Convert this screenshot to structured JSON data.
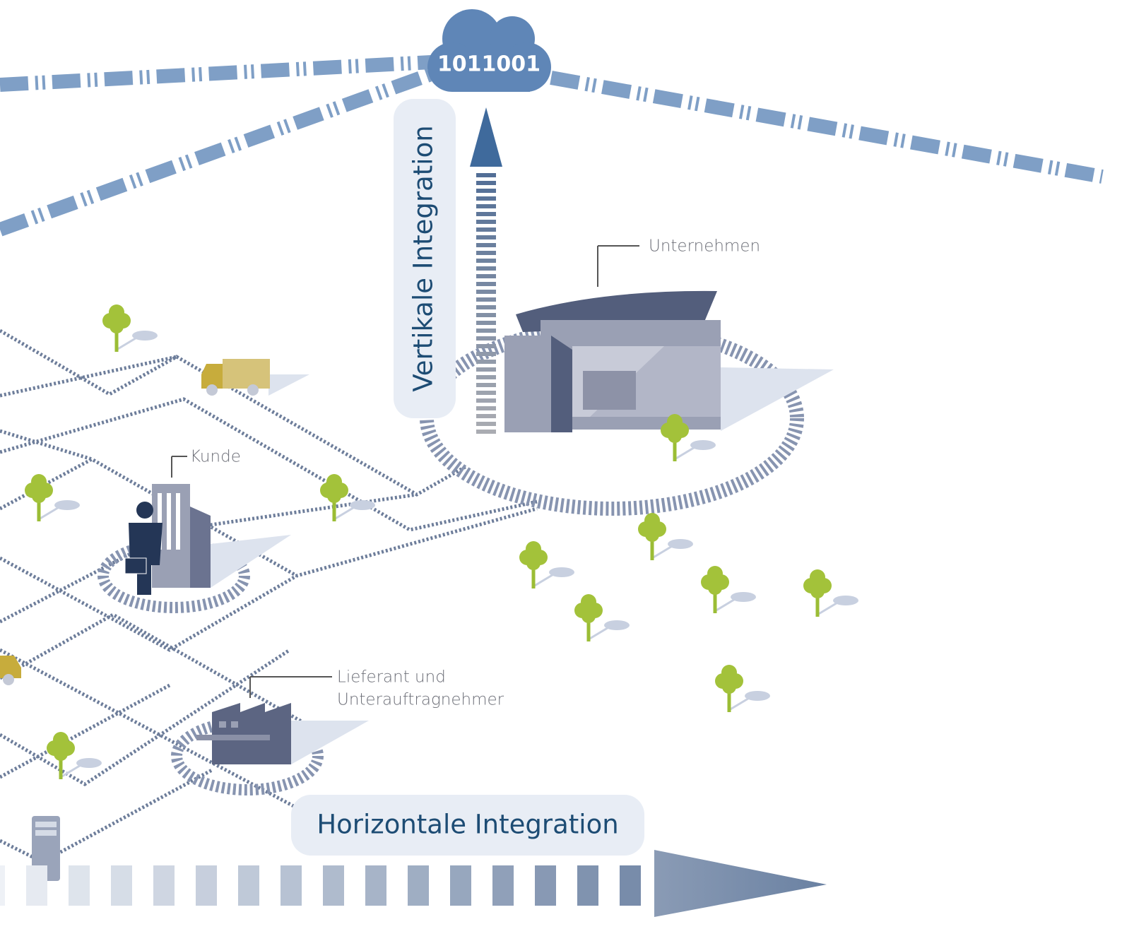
{
  "cloud": {
    "label": "1011001"
  },
  "vertical": {
    "label": "Vertikale Integration"
  },
  "horizontal": {
    "label": "Horizontale Integration"
  },
  "nodes": {
    "company": {
      "label": "Unternehmen"
    },
    "customer": {
      "label": "Kunde"
    },
    "supplier": {
      "lines": [
        "Lieferant und",
        "Unterauftragnehmer"
      ]
    }
  }
}
